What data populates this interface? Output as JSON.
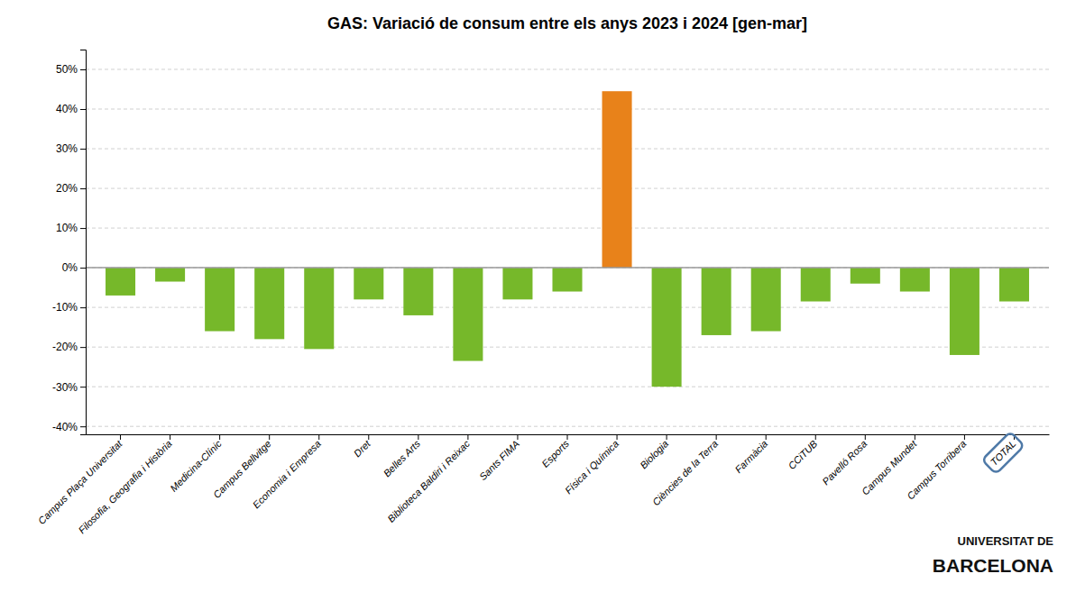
{
  "chart_data": {
    "type": "bar",
    "title": "GAS: Variació de consum entre els anys 2023 i 2024 [gen-mar]",
    "categories": [
      "Campus Plaça Universitat",
      "Filosofia, Geografia i Història",
      "Medicina-Clínic",
      "Campus Bellvitge",
      "Economia i Empresa",
      "Dret",
      "Belles Arts",
      "Biblioteca Baldiri i Reixac",
      "Sants FIMA",
      "Esports",
      "Física i Química",
      "Biologia",
      "Ciències de la Terra",
      "Farmàcia",
      "CCiTUB",
      "Pavelló Rosa",
      "Campus Mundet",
      "Campus Torribera",
      "TOTAL"
    ],
    "values": [
      -7.0,
      -3.5,
      -16.0,
      -18.0,
      -20.5,
      -8.0,
      -12.0,
      -23.5,
      -8.0,
      -6.0,
      44.5,
      -30.0,
      -17.0,
      -16.0,
      -8.5,
      -4.0,
      -6.0,
      -22.0,
      -8.5
    ],
    "colors": [
      "#76B82A",
      "#76B82A",
      "#76B82A",
      "#76B82A",
      "#76B82A",
      "#76B82A",
      "#76B82A",
      "#76B82A",
      "#76B82A",
      "#76B82A",
      "#E8821A",
      "#76B82A",
      "#76B82A",
      "#76B82A",
      "#76B82A",
      "#76B82A",
      "#76B82A",
      "#76B82A",
      "#76B82A"
    ],
    "ylim": [
      -42,
      55
    ],
    "yticks": [
      {
        "value": -40,
        "label": "-40%"
      },
      {
        "value": -30,
        "label": "-30%"
      },
      {
        "value": -20,
        "label": "-20%"
      },
      {
        "value": -10,
        "label": "-10%"
      },
      {
        "value": 0,
        "label": "0%"
      },
      {
        "value": 10,
        "label": "10%"
      },
      {
        "value": 20,
        "label": "20%"
      },
      {
        "value": 30,
        "label": "30%"
      },
      {
        "value": 40,
        "label": "40%"
      },
      {
        "value": 50,
        "label": "50%"
      }
    ],
    "grid": true,
    "annotations": [
      "UNIVERSITAT DE",
      "BARCELONA"
    ]
  }
}
